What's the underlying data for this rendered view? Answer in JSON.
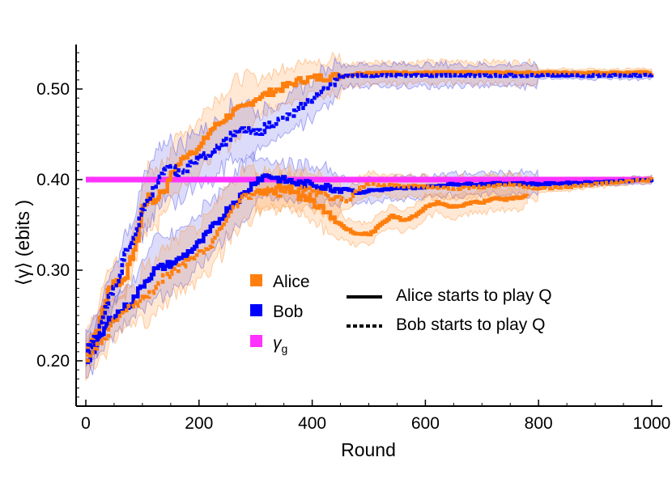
{
  "chart_data": {
    "type": "line",
    "xlabel": "Round",
    "ylabel": "⟨γ⟩ (ebits )",
    "xlim": [
      -15,
      1005
    ],
    "ylim": [
      0.15,
      0.55
    ],
    "x_ticks": [
      0,
      200,
      400,
      600,
      800,
      1000
    ],
    "x_tick_labels": [
      "0",
      "200",
      "400",
      "600",
      "800",
      "1000"
    ],
    "y_ticks": [
      0.2,
      0.3,
      0.4,
      0.5
    ],
    "y_tick_labels": [
      "0.20",
      "0.30",
      "0.40",
      "0.50"
    ],
    "legend": {
      "players": [
        {
          "name": "Alice",
          "color": "#ff7f0e"
        },
        {
          "name": "Bob",
          "color": "#0000ff"
        },
        {
          "name": "γ",
          "subscript": "g",
          "color": "#ff33ff"
        }
      ],
      "styles": [
        {
          "label": "Alice starts to play Q",
          "dash": "solid"
        },
        {
          "label": "Bob starts to play Q",
          "dash": "dotted"
        }
      ],
      "placement": "center"
    },
    "reference_line": {
      "name": "γg",
      "value": 0.4,
      "color": "#ff33ff"
    },
    "series": [
      {
        "player": "Alice",
        "style": "solid",
        "color": "#ff7f0e",
        "x": [
          0,
          10,
          20,
          30,
          40,
          50,
          60,
          70,
          80,
          90,
          100,
          110,
          120,
          130,
          140,
          150,
          160,
          180,
          200,
          220,
          240,
          260,
          280,
          300,
          320,
          340,
          360,
          380,
          400,
          420,
          440,
          460,
          480,
          500,
          550,
          600,
          700,
          800,
          900,
          1000
        ],
        "y": [
          0.21,
          0.225,
          0.235,
          0.26,
          0.28,
          0.29,
          0.285,
          0.295,
          0.315,
          0.335,
          0.37,
          0.38,
          0.375,
          0.385,
          0.39,
          0.405,
          0.415,
          0.43,
          0.435,
          0.455,
          0.465,
          0.475,
          0.48,
          0.49,
          0.495,
          0.5,
          0.505,
          0.51,
          0.512,
          0.513,
          0.514,
          0.515,
          0.517,
          0.518,
          0.518,
          0.518,
          0.518,
          0.518,
          0.518,
          0.518
        ]
      },
      {
        "player": "Bob",
        "style": "dotted",
        "color": "#0000ff",
        "x": [
          0,
          10,
          20,
          30,
          40,
          50,
          60,
          70,
          80,
          90,
          100,
          110,
          120,
          130,
          140,
          150,
          160,
          180,
          200,
          220,
          240,
          260,
          280,
          300,
          320,
          340,
          360,
          380,
          400,
          420,
          440,
          460,
          480,
          500,
          550,
          600,
          700,
          800,
          900,
          1000
        ],
        "y": [
          0.21,
          0.22,
          0.23,
          0.25,
          0.27,
          0.28,
          0.3,
          0.32,
          0.33,
          0.35,
          0.37,
          0.38,
          0.39,
          0.4,
          0.41,
          0.415,
          0.405,
          0.415,
          0.425,
          0.43,
          0.44,
          0.45,
          0.455,
          0.45,
          0.46,
          0.465,
          0.47,
          0.48,
          0.49,
          0.5,
          0.51,
          0.515,
          0.515,
          0.515,
          0.515,
          0.515,
          0.515,
          0.515,
          0.515,
          0.515
        ]
      },
      {
        "player": "Bob",
        "style": "solid",
        "color": "#0000ff",
        "x": [
          0,
          20,
          40,
          60,
          80,
          100,
          120,
          140,
          160,
          180,
          200,
          220,
          240,
          260,
          280,
          300,
          320,
          340,
          360,
          380,
          400,
          420,
          440,
          460,
          480,
          500,
          550,
          600,
          650,
          700,
          750,
          800,
          850,
          900,
          950,
          1000
        ],
        "y": [
          0.2,
          0.22,
          0.245,
          0.255,
          0.265,
          0.285,
          0.3,
          0.305,
          0.31,
          0.32,
          0.33,
          0.345,
          0.36,
          0.375,
          0.385,
          0.4,
          0.405,
          0.4,
          0.398,
          0.395,
          0.395,
          0.392,
          0.39,
          0.39,
          0.385,
          0.388,
          0.39,
          0.392,
          0.395,
          0.395,
          0.396,
          0.395,
          0.396,
          0.397,
          0.398,
          0.4
        ]
      },
      {
        "player": "Alice",
        "style": "dotted",
        "color": "#ff7f0e",
        "x": [
          0,
          20,
          40,
          60,
          80,
          100,
          120,
          140,
          160,
          180,
          200,
          220,
          240,
          260,
          280,
          300,
          320,
          340,
          360,
          380,
          400,
          420,
          440,
          460,
          480,
          500,
          550,
          600,
          650,
          700,
          750,
          800,
          850,
          900,
          950,
          1000
        ],
        "y": [
          0.2,
          0.215,
          0.235,
          0.255,
          0.26,
          0.27,
          0.28,
          0.295,
          0.3,
          0.31,
          0.32,
          0.33,
          0.35,
          0.37,
          0.38,
          0.385,
          0.39,
          0.385,
          0.39,
          0.39,
          0.385,
          0.385,
          0.38,
          0.375,
          0.39,
          0.395,
          0.393,
          0.392,
          0.39,
          0.392,
          0.395,
          0.39,
          0.392,
          0.395,
          0.398,
          0.4
        ]
      },
      {
        "player": "Alice",
        "style": "solid-secondary",
        "color": "#ff7f0e",
        "x": [
          300,
          320,
          340,
          360,
          380,
          400,
          420,
          440,
          460,
          480,
          500,
          520,
          540,
          560,
          580,
          600,
          620,
          640,
          660,
          680,
          700,
          720,
          740,
          760,
          780
        ],
        "y": [
          0.39,
          0.385,
          0.39,
          0.39,
          0.38,
          0.375,
          0.365,
          0.355,
          0.345,
          0.34,
          0.34,
          0.35,
          0.36,
          0.355,
          0.36,
          0.37,
          0.375,
          0.37,
          0.37,
          0.375,
          0.375,
          0.38,
          0.378,
          0.38,
          0.382
        ]
      }
    ]
  }
}
